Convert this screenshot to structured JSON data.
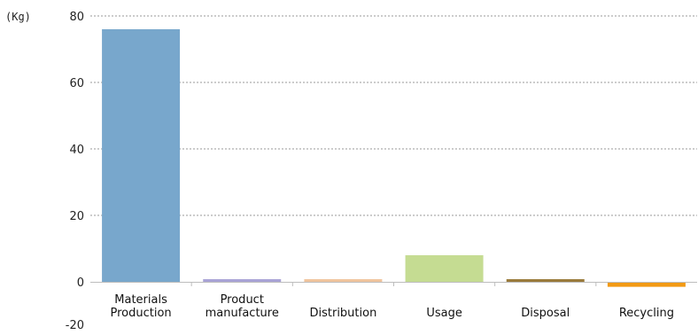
{
  "chart_data": {
    "type": "bar",
    "unit_label": "(Kg)",
    "categories": [
      [
        "Materials",
        "Production"
      ],
      [
        "Product",
        "manufacture"
      ],
      [
        "Distribution"
      ],
      [
        "Usage"
      ],
      [
        "Disposal"
      ],
      [
        "Recycling"
      ]
    ],
    "values": [
      76,
      0.5,
      0.5,
      8,
      1,
      -1.5
    ],
    "colors": [
      "#78a7cc",
      "#a9a3d6",
      "#f0c49e",
      "#c5dc92",
      "#9a7b3c",
      "#f29a14"
    ],
    "yticks": [
      80,
      60,
      40,
      20,
      0,
      -20
    ],
    "ylim": [
      -20,
      80
    ],
    "grid": true
  }
}
